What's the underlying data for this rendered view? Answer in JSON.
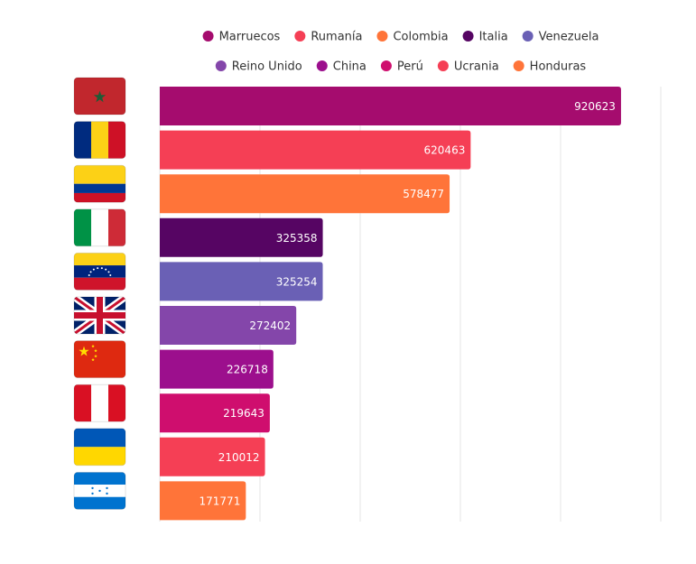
{
  "chart_data": {
    "type": "bar",
    "orientation": "horizontal",
    "categories": [
      "Marruecos",
      "Rumanía",
      "Colombia",
      "Italia",
      "Venezuela",
      "Reino Unido",
      "China",
      "Perú",
      "Ucrania",
      "Honduras"
    ],
    "values": [
      920623,
      620463,
      578477,
      325358,
      325254,
      272402,
      226718,
      219643,
      210012,
      171771
    ],
    "colors": [
      "#a50c6e",
      "#f53f55",
      "#ff7439",
      "#560563",
      "#6a60b5",
      "#8446aa",
      "#9c0f8d",
      "#cf0e6e",
      "#f53f55",
      "#ff7439"
    ],
    "flag_icons": [
      "flag-morocco-icon",
      "flag-romania-icon",
      "flag-colombia-icon",
      "flag-italy-icon",
      "flag-venezuela-icon",
      "flag-uk-icon",
      "flag-china-icon",
      "flag-peru-icon",
      "flag-ukraine-icon",
      "flag-honduras-icon"
    ],
    "xlim": [
      0,
      1000000
    ],
    "grid": true,
    "legend": "top"
  }
}
